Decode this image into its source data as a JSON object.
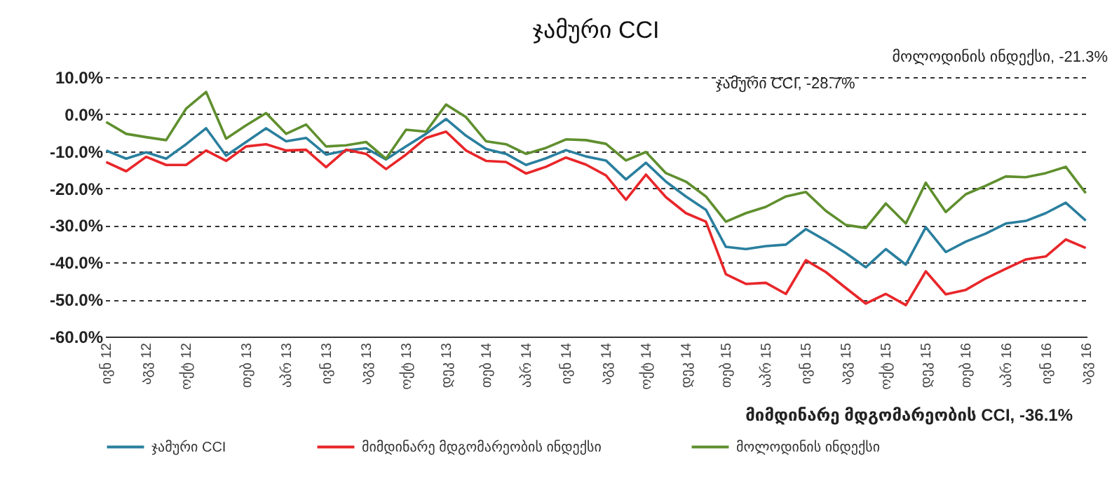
{
  "chart_data": {
    "type": "line",
    "title": "ჯამური CCI",
    "categories": [
      "ივნ 12",
      null,
      "აგვ 12",
      null,
      "ოქტ 12",
      null,
      null,
      "თებ 13",
      null,
      "აპრ 13",
      null,
      "ივნ 13",
      null,
      "აგვ 13",
      null,
      "ოქტ 13",
      null,
      "დეკ 13",
      null,
      "თებ 14",
      null,
      "აპრ 14",
      null,
      "ივნ 14",
      null,
      "აგვ 14",
      null,
      "ოქტ 14",
      null,
      "დეკ 14",
      null,
      "თებ 15",
      null,
      "აპრ 15",
      null,
      "ივნ 15",
      null,
      "აგვ 15",
      null,
      "ოქტ 15",
      null,
      "დეკ 15",
      null,
      "თებ 16",
      null,
      "აპრ 16",
      null,
      "ივნ 16",
      null,
      "აგვ 16"
    ],
    "series": [
      {
        "name": "ჯამური CCI",
        "color": "#2a7f9e",
        "values": [
          -9.8,
          -12.0,
          -10.3,
          -12.0,
          -8.1,
          -3.8,
          -11.2,
          -7.5,
          -3.8,
          -7.3,
          -6.4,
          -10.9,
          -9.8,
          -9.2,
          -12.2,
          -8.7,
          -5.3,
          -1.3,
          -5.8,
          -9.4,
          -10.7,
          -13.7,
          -11.9,
          -9.7,
          -11.4,
          -12.5,
          -17.6,
          -13.1,
          -18.2,
          -22.2,
          -25.8,
          -35.8,
          -36.4,
          -35.6,
          -35.2,
          -31.0,
          -34.1,
          -37.5,
          -41.3,
          -36.4,
          -40.6,
          -30.5,
          -37.2,
          -34.4,
          -32.2,
          -29.5,
          -28.8,
          -26.7,
          -23.9,
          -28.7
        ]
      },
      {
        "name": "მიმდინარე მდგომარეობის ინდექსი",
        "color": "#e8262a",
        "values": [
          -12.9,
          -15.4,
          -11.5,
          -13.7,
          -13.7,
          -9.8,
          -12.6,
          -8.7,
          -8.1,
          -9.8,
          -9.6,
          -14.3,
          -9.6,
          -10.7,
          -14.8,
          -10.9,
          -6.4,
          -4.7,
          -9.8,
          -12.6,
          -12.9,
          -16.0,
          -14.2,
          -11.7,
          -13.6,
          -16.5,
          -23.1,
          -16.3,
          -22.4,
          -26.7,
          -29.0,
          -43.2,
          -45.8,
          -45.5,
          -48.5,
          -39.4,
          -42.6,
          -46.9,
          -51.1,
          -48.5,
          -51.5,
          -42.4,
          -48.6,
          -47.4,
          -44.3,
          -41.7,
          -39.2,
          -38.4,
          -33.8,
          -36.1
        ]
      },
      {
        "name": "მოლოდინის ინდექსი",
        "color": "#5f8f2e",
        "values": [
          -2.1,
          -5.3,
          -6.2,
          -7.0,
          1.5,
          6.0,
          -6.6,
          -3.0,
          0.3,
          -5.3,
          -2.8,
          -8.7,
          -8.4,
          -7.5,
          -12.0,
          -4.2,
          -4.7,
          2.6,
          -0.8,
          -7.3,
          -8.1,
          -10.7,
          -9.1,
          -6.8,
          -7.0,
          -8.0,
          -12.5,
          -10.2,
          -15.9,
          -18.2,
          -22.2,
          -29.0,
          -26.7,
          -25.0,
          -22.2,
          -21.0,
          -26.1,
          -29.9,
          -30.7,
          -24.1,
          -29.5,
          -18.5,
          -26.4,
          -21.6,
          -19.3,
          -16.8,
          -17.0,
          -15.9,
          -14.2,
          -21.3
        ]
      }
    ],
    "ylim": [
      -60,
      10
    ],
    "yticks": [
      {
        "value": 10,
        "label": "10.0%"
      },
      {
        "value": 0,
        "label": "0.0%"
      },
      {
        "value": -10,
        "label": "-10.0%"
      },
      {
        "value": -20,
        "label": "-20.0%"
      },
      {
        "value": -30,
        "label": "-30.0%"
      },
      {
        "value": -40,
        "label": "-40.0%"
      },
      {
        "value": -50,
        "label": "-50.0%"
      },
      {
        "value": -60,
        "label": "-60.0%"
      }
    ],
    "grid": "y",
    "legend": "bottom",
    "line_style": "solid",
    "annotations": [
      "ჯამური CCI, -28.7%",
      "მოლოდინის ინდექსი, -21.3%",
      "მიმდინარე მდგომარეობის CCI, -36.1%"
    ]
  }
}
